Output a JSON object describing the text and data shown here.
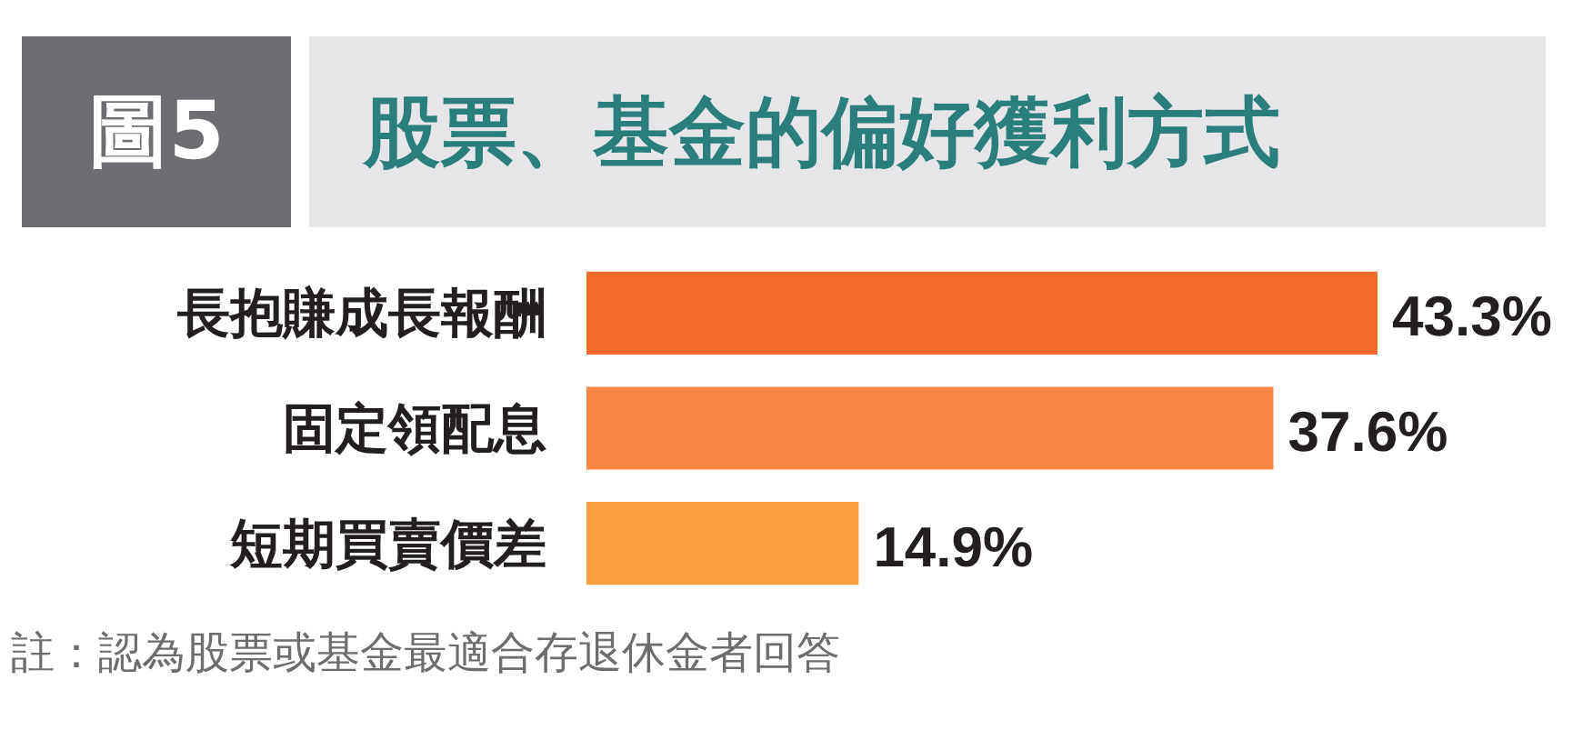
{
  "chart_data": {
    "type": "bar",
    "orientation": "horizontal",
    "title": "股票、基金的偏好獲利方式",
    "categories": [
      "長抱賺成長報酬",
      "固定領配息",
      "短期買賣價差"
    ],
    "values": [
      43.3,
      37.6,
      14.9
    ],
    "colors": [
      "#f26b2b",
      "#f58541",
      "#f8a041"
    ],
    "value_labels": [
      "43.3%",
      "37.6%",
      "14.9%"
    ],
    "annotations": [
      "圖5",
      "註：認為股票或基金最適合存退休金者回答"
    ],
    "tick_labels": "y"
  }
}
